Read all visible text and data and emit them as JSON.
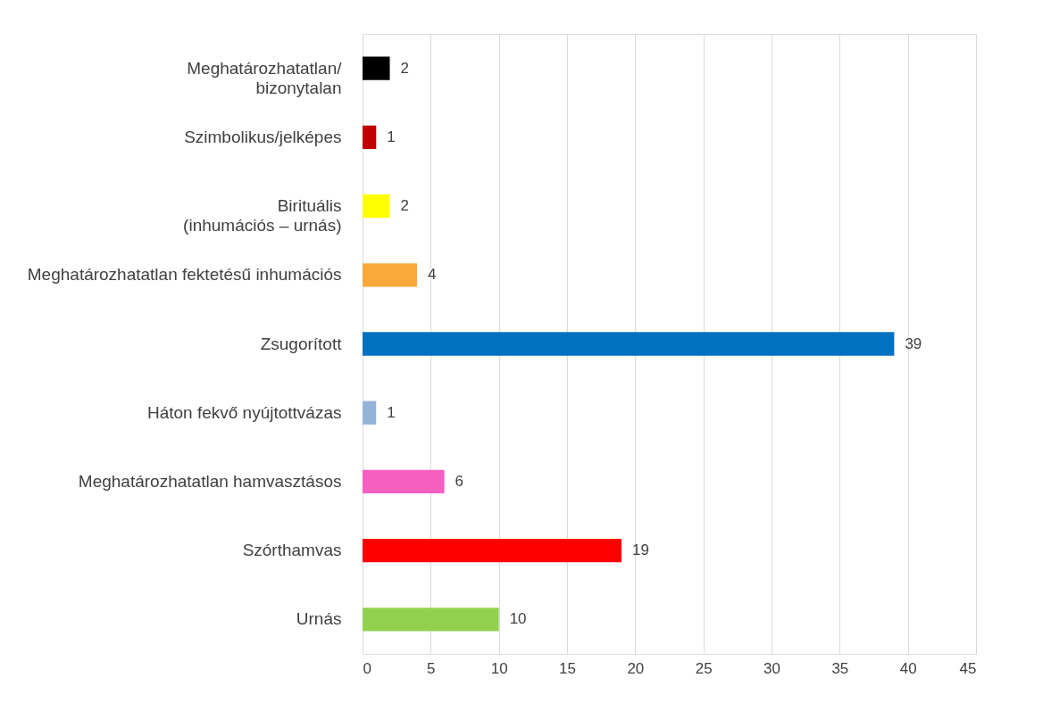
{
  "chart_data": {
    "type": "bar",
    "orientation": "horizontal",
    "categories": [
      "Meghatározhatatlan/\nbizonytalan",
      "Szimbolikus/jelképes",
      "Birituális\n(inhumációs – urnás)",
      "Meghatározhatatlan fektetésű inhumációs",
      "Zsugorított",
      "Háton fekvő nyújtottvázas",
      "Meghatározhatatlan hamvasztásos",
      "Szórthamvas",
      "Urnás"
    ],
    "values": [
      2,
      1,
      2,
      4,
      39,
      1,
      6,
      19,
      10
    ],
    "colors": [
      "#000000",
      "#c00000",
      "#ffff00",
      "#f9a83a",
      "#0070c0",
      "#95b3d7",
      "#f65ec0",
      "#ff0000",
      "#92d050"
    ],
    "xlim": [
      0,
      45
    ],
    "xticks": [
      0,
      5,
      10,
      15,
      20,
      25,
      30,
      35,
      40,
      45
    ],
    "grid": "x",
    "data_labels": true
  }
}
